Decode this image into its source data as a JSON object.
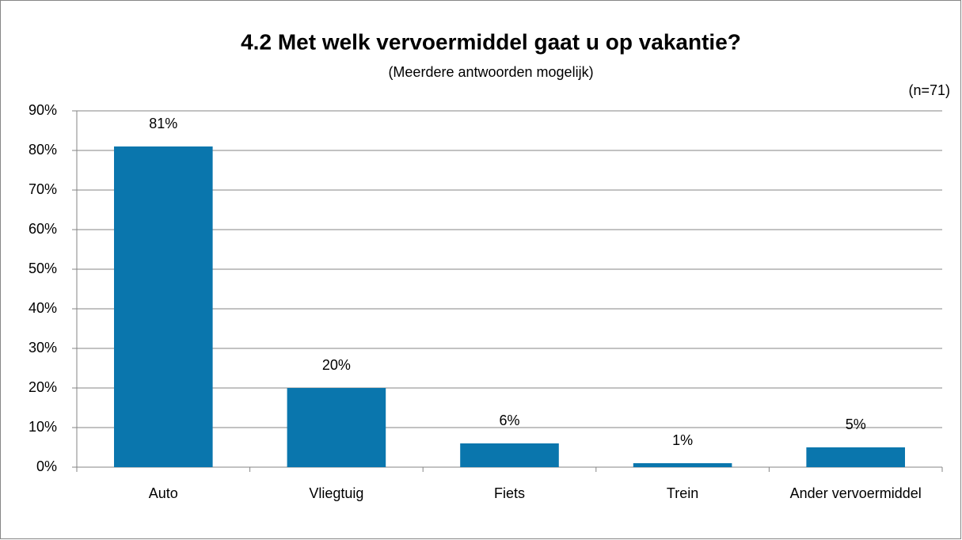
{
  "chart_data": {
    "type": "bar",
    "title": "4.2 Met welk vervoermiddel gaat u op vakantie?",
    "subtitle": "(Meerdere antwoorden mogelijk)",
    "annotation": "(n=71)",
    "categories": [
      "Auto",
      "Vliegtuig",
      "Fiets",
      "Trein",
      "Ander vervoermiddel"
    ],
    "values": [
      81,
      20,
      6,
      1,
      5
    ],
    "value_labels": [
      "81%",
      "20%",
      "6%",
      "1%",
      "5%"
    ],
    "color": "#0a76ad",
    "ylim": [
      0,
      90
    ],
    "yticks": [
      {
        "value": 0,
        "label": "0%"
      },
      {
        "value": 10,
        "label": "10%"
      },
      {
        "value": 20,
        "label": "20%"
      },
      {
        "value": 30,
        "label": "30%"
      },
      {
        "value": 40,
        "label": "40%"
      },
      {
        "value": 50,
        "label": "50%"
      },
      {
        "value": 60,
        "label": "60%"
      },
      {
        "value": 70,
        "label": "70%"
      },
      {
        "value": 80,
        "label": "80%"
      },
      {
        "value": 90,
        "label": "90%"
      }
    ],
    "grid": true
  }
}
